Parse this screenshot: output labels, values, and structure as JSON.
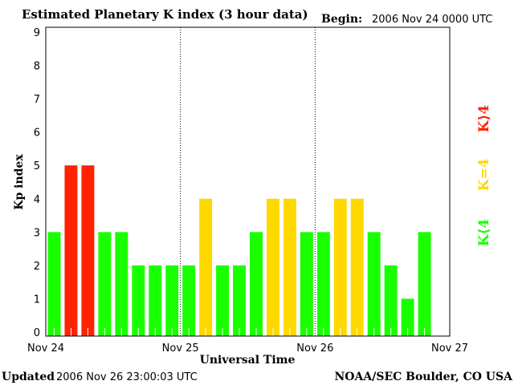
{
  "chart_data": {
    "type": "bar",
    "title": "Estimated Planetary K index (3 hour data)",
    "begin_label": "Begin:",
    "begin_value": "2006 Nov 24 0000 UTC",
    "xlabel": "Universal Time",
    "ylabel": "Kp index",
    "ylim": [
      0,
      9
    ],
    "yticks": [
      "0",
      "1",
      "2",
      "3",
      "4",
      "5",
      "6",
      "7",
      "8",
      "9"
    ],
    "xticks": [
      "Nov 24",
      "Nov 25",
      "Nov 26",
      "Nov 27"
    ],
    "bins_per_day": 8,
    "values": [
      3,
      5,
      5,
      3,
      3,
      2,
      2,
      2,
      2,
      4,
      2,
      2,
      3,
      4,
      4,
      3,
      3,
      4,
      4,
      3,
      2,
      1,
      3
    ],
    "legend": [
      {
        "label": "K⟨4",
        "color": "#19ff00"
      },
      {
        "label": "K=4",
        "color": "#ffd800"
      },
      {
        "label": "K⟩4",
        "color": "#ff2200"
      }
    ],
    "legend_placement": "right",
    "grid": "dotted day separators"
  },
  "footer": {
    "updated_label": "Updated",
    "updated_value": "2006 Nov 26 23:00:03 UTC",
    "source": "NOAA/SEC Boulder, CO USA"
  }
}
